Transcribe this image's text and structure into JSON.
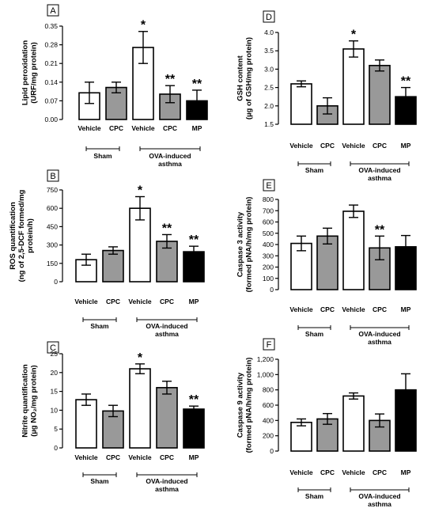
{
  "chart_data": [
    {
      "panel": "A",
      "type": "bar",
      "ylabel": [
        "Lipid peroxidation",
        "(URF/mg protein)"
      ],
      "ylim": [
        0,
        0.35
      ],
      "yticks": [
        "0.00",
        "0.07",
        "0.14",
        "0.21",
        "0.28",
        "0.35"
      ],
      "categories": [
        "Vehicle",
        "CPC",
        "Vehicle",
        "CPC",
        "MP"
      ],
      "groups": [
        {
          "label": [
            "Sham"
          ],
          "span": [
            0,
            1
          ]
        },
        {
          "label": [
            "OVA-induced",
            "asthma"
          ],
          "span": [
            2,
            4
          ]
        }
      ],
      "values": [
        0.1,
        0.12,
        0.27,
        0.095,
        0.07
      ],
      "errors": [
        0.04,
        0.02,
        0.06,
        0.032,
        0.04
      ],
      "fills": [
        "#ffffff",
        "#999999",
        "#ffffff",
        "#999999",
        "#000000"
      ],
      "annotations": [
        "",
        "",
        "*",
        "**",
        "**"
      ]
    },
    {
      "panel": "D",
      "type": "bar",
      "ylabel": [
        "GSH content",
        "(µg of GSH/mg protein)"
      ],
      "ylim": [
        1.5,
        4.0
      ],
      "yticks": [
        "1.5",
        "2.0",
        "2.5",
        "3.0",
        "3.5",
        "4.0"
      ],
      "categories": [
        "Vehicle",
        "CPC",
        "Vehicle",
        "CPC",
        "MP"
      ],
      "groups": [
        {
          "label": [
            "Sham"
          ],
          "span": [
            0,
            1
          ]
        },
        {
          "label": [
            "OVA-induced",
            "asthma"
          ],
          "span": [
            2,
            4
          ]
        }
      ],
      "values": [
        2.6,
        2.0,
        3.55,
        3.1,
        2.25
      ],
      "errors": [
        0.08,
        0.22,
        0.22,
        0.15,
        0.25
      ],
      "fills": [
        "#ffffff",
        "#999999",
        "#ffffff",
        "#999999",
        "#000000"
      ],
      "annotations": [
        "",
        "",
        "*",
        "",
        "**"
      ]
    },
    {
      "panel": "B",
      "type": "bar",
      "ylabel": [
        "ROS quantification",
        "(ng of 2,5-DCF formed/mg",
        "protein/h)"
      ],
      "ylim": [
        0,
        750
      ],
      "yticks": [
        "0",
        "150",
        "300",
        "450",
        "600",
        "750"
      ],
      "categories": [
        "Vehicle",
        "CPC",
        "Vehicle",
        "CPC",
        "MP"
      ],
      "groups": [
        {
          "label": [
            "Sham"
          ],
          "span": [
            0,
            1
          ]
        },
        {
          "label": [
            "OVA-induced",
            "asthma"
          ],
          "span": [
            2,
            4
          ]
        }
      ],
      "values": [
        180,
        255,
        600,
        330,
        245
      ],
      "errors": [
        45,
        30,
        95,
        55,
        45
      ],
      "fills": [
        "#ffffff",
        "#999999",
        "#ffffff",
        "#999999",
        "#000000"
      ],
      "annotations": [
        "",
        "",
        "*",
        "**",
        "**"
      ]
    },
    {
      "panel": "E",
      "type": "bar",
      "ylabel": [
        "Caspase 3 activity",
        "(formed pNA/h/mg protein)"
      ],
      "ylim": [
        0,
        800
      ],
      "yticks": [
        "0",
        "100",
        "200",
        "300",
        "400",
        "500",
        "600",
        "700",
        "800"
      ],
      "categories": [
        "Vehicle",
        "CPC",
        "Vehicle",
        "CPC",
        "MP"
      ],
      "groups": [
        {
          "label": [
            "Sham"
          ],
          "span": [
            0,
            1
          ]
        },
        {
          "label": [
            "OVA-induced",
            "asthma"
          ],
          "span": [
            2,
            4
          ]
        }
      ],
      "values": [
        410,
        475,
        695,
        370,
        380
      ],
      "errors": [
        65,
        70,
        55,
        105,
        100
      ],
      "fills": [
        "#ffffff",
        "#999999",
        "#ffffff",
        "#999999",
        "#000000"
      ],
      "annotations": [
        "",
        "",
        "",
        "**",
        ""
      ]
    },
    {
      "panel": "C",
      "type": "bar",
      "ylabel": [
        "Nitrite quantification",
        "(µg NO₂/mg protein)"
      ],
      "ylim": [
        0,
        25
      ],
      "yticks": [
        "0",
        "5",
        "10",
        "15",
        "20",
        "25"
      ],
      "categories": [
        "Vehicle",
        "CPC",
        "Vehicle",
        "CPC",
        "MP"
      ],
      "groups": [
        {
          "label": [
            "Sham"
          ],
          "span": [
            0,
            1
          ]
        },
        {
          "label": [
            "OVA-induced",
            "asthma"
          ],
          "span": [
            2,
            4
          ]
        }
      ],
      "values": [
        12.8,
        9.8,
        21.0,
        16.0,
        10.3
      ],
      "errors": [
        1.5,
        1.5,
        1.3,
        1.7,
        0.8
      ],
      "fills": [
        "#ffffff",
        "#999999",
        "#ffffff",
        "#999999",
        "#000000"
      ],
      "annotations": [
        "",
        "",
        "*",
        "",
        "**"
      ]
    },
    {
      "panel": "F",
      "type": "bar",
      "ylabel": [
        "Caspase 9 activity",
        "(formed pNA/h/mg protein)"
      ],
      "ylim": [
        0,
        1200
      ],
      "yticks": [
        "0",
        "200",
        "400",
        "600",
        "800",
        "1,000",
        "1,200"
      ],
      "categories": [
        "Vehicle",
        "CPC",
        "Vehicle",
        "CPC",
        "MP"
      ],
      "groups": [
        {
          "label": [
            "Sham"
          ],
          "span": [
            0,
            1
          ]
        },
        {
          "label": [
            "OVA-induced",
            "asthma"
          ],
          "span": [
            2,
            4
          ]
        }
      ],
      "values": [
        375,
        420,
        720,
        400,
        800
      ],
      "errors": [
        45,
        70,
        40,
        85,
        210
      ],
      "fills": [
        "#ffffff",
        "#999999",
        "#ffffff",
        "#999999",
        "#000000"
      ],
      "annotations": [
        "",
        "",
        "",
        "",
        ""
      ]
    }
  ]
}
